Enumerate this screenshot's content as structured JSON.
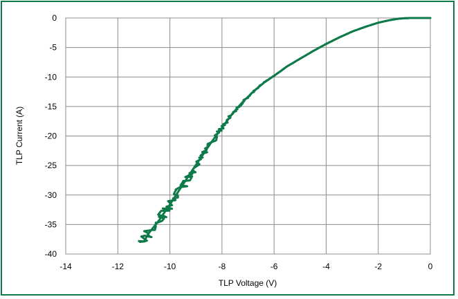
{
  "chart_data": {
    "type": "line",
    "title": "",
    "xlabel": "TLP Voltage (V)",
    "ylabel": "TLP Current (A)",
    "xlim": [
      -14,
      0
    ],
    "ylim": [
      -40,
      0
    ],
    "x_ticks": [
      -14,
      -12,
      -10,
      -8,
      -6,
      -4,
      -2,
      0
    ],
    "y_ticks": [
      0,
      -5,
      -10,
      -15,
      -20,
      -25,
      -30,
      -35,
      -40
    ],
    "grid": true,
    "legend": "none",
    "series": [
      {
        "color": "#0e7a4a",
        "points": [
          [
            0.0,
            0.0
          ],
          [
            -0.4,
            0.0
          ],
          [
            -0.8,
            0.0
          ],
          [
            -1.2,
            -0.1
          ],
          [
            -1.6,
            -0.4
          ],
          [
            -2.0,
            -0.8
          ],
          [
            -2.5,
            -1.5
          ],
          [
            -3.0,
            -2.3
          ],
          [
            -3.5,
            -3.3
          ],
          [
            -4.0,
            -4.4
          ],
          [
            -4.5,
            -5.6
          ],
          [
            -5.0,
            -6.9
          ],
          [
            -5.5,
            -8.2
          ],
          [
            -6.0,
            -9.8
          ],
          [
            -6.4,
            -11.0
          ],
          [
            -6.8,
            -12.5
          ],
          [
            -7.2,
            -14.2
          ],
          [
            -7.6,
            -16.2
          ],
          [
            -8.0,
            -18.6
          ],
          [
            -8.4,
            -21.0
          ],
          [
            -8.8,
            -23.6
          ],
          [
            -9.2,
            -26.2
          ],
          [
            -9.6,
            -28.9
          ],
          [
            -10.0,
            -31.6
          ],
          [
            -10.4,
            -34.2
          ],
          [
            -10.8,
            -36.4
          ],
          [
            -11.0,
            -37.9
          ]
        ]
      }
    ]
  }
}
